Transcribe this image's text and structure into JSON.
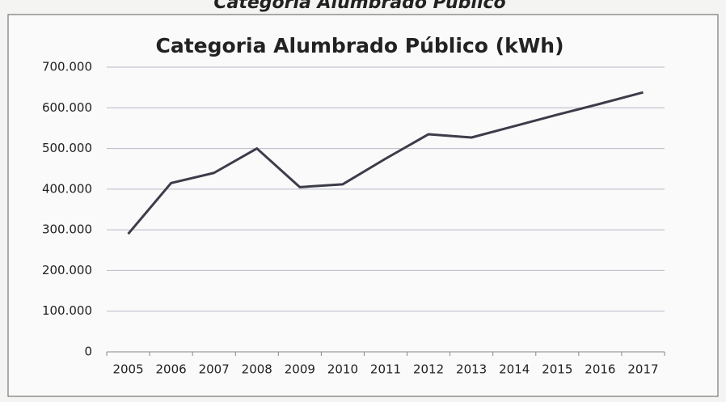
{
  "chart_data": {
    "type": "line",
    "header": "Categoria Alumbrado Público",
    "title": "Categoria Alumbrado Público (kWh)",
    "categories": [
      "2005",
      "2006",
      "2007",
      "2008",
      "2009",
      "2010",
      "2011",
      "2012",
      "2013",
      "2014",
      "2015",
      "2016",
      "2017"
    ],
    "series": [
      {
        "name": "Alumbrado Público",
        "color": "#3c3c4a",
        "values": [
          290000,
          415000,
          440000,
          500000,
          405000,
          412000,
          475000,
          535000,
          527000,
          555000,
          583000,
          610000,
          638000
        ]
      }
    ],
    "ylim": [
      0,
      700000
    ],
    "yticks": [
      0,
      {
        "value": 100000,
        "label": "100.000"
      },
      {
        "value": 200000,
        "label": "200.000"
      },
      {
        "value": 300000,
        "label": "300.000"
      },
      {
        "value": 400000,
        "label": "400.000"
      },
      {
        "value": 500000,
        "label": "500.000"
      },
      {
        "value": 600000,
        "label": "600.000"
      },
      {
        "value": 700000,
        "label": "700.000"
      }
    ],
    "grid": true,
    "legend": false
  }
}
